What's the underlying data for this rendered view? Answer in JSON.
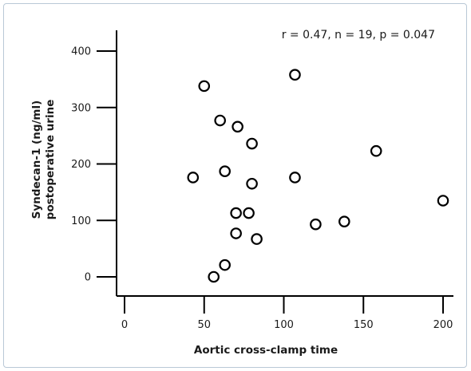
{
  "chart_data": {
    "type": "scatter",
    "title": "",
    "annotation": "r = 0.47, n = 19, p = 0.047",
    "xlabel": "Aortic cross-clamp time",
    "ylabel": [
      "Syndecan-1 (ng/ml)",
      "postoperative urine"
    ],
    "xlim": [
      -5,
      207
    ],
    "ylim": [
      -5,
      440
    ],
    "xticks": [
      0,
      50,
      100,
      150,
      200
    ],
    "yticks": [
      0,
      100,
      200,
      300,
      400
    ],
    "marker": "open-circle",
    "marker_color": "#000000",
    "grid": false,
    "points": [
      {
        "x": 43,
        "y": 176
      },
      {
        "x": 50,
        "y": 338
      },
      {
        "x": 56,
        "y": 0
      },
      {
        "x": 60,
        "y": 277
      },
      {
        "x": 63,
        "y": 21
      },
      {
        "x": 63,
        "y": 187
      },
      {
        "x": 71,
        "y": 266
      },
      {
        "x": 70,
        "y": 113
      },
      {
        "x": 70,
        "y": 77
      },
      {
        "x": 78,
        "y": 113
      },
      {
        "x": 80,
        "y": 236
      },
      {
        "x": 80,
        "y": 165
      },
      {
        "x": 83,
        "y": 67
      },
      {
        "x": 107,
        "y": 358
      },
      {
        "x": 107,
        "y": 176
      },
      {
        "x": 120,
        "y": 93
      },
      {
        "x": 138,
        "y": 98
      },
      {
        "x": 158,
        "y": 223
      },
      {
        "x": 200,
        "y": 135
      }
    ]
  }
}
